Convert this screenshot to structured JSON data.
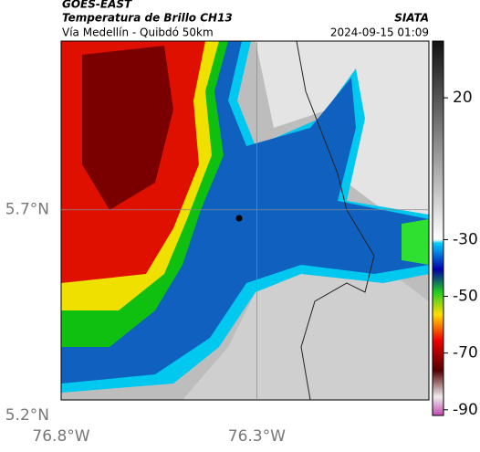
{
  "header": {
    "source": "GOES-EAST",
    "title": "Temperatura de Brillo CH13",
    "subtitle": "Vía Medellín - Quibdó 50km",
    "org": "SIATA",
    "timestamp": "2024-09-15 01:09"
  },
  "map": {
    "lonlim": [
      -76.8,
      -75.86
    ],
    "latlim": [
      5.2,
      6.11
    ],
    "lonticks": [
      {
        "value": -76.8,
        "label": "76.8°W"
      },
      {
        "value": -76.3,
        "label": "76.3°W"
      }
    ],
    "latticks": [
      {
        "value": 5.7,
        "label": "5.7°N"
      },
      {
        "value": 5.2,
        "label": "5.2°N"
      }
    ]
  },
  "colorbar": {
    "lim": [
      -92,
      40
    ],
    "ticks": [
      20,
      -30,
      -50,
      -70,
      -90
    ]
  }
}
